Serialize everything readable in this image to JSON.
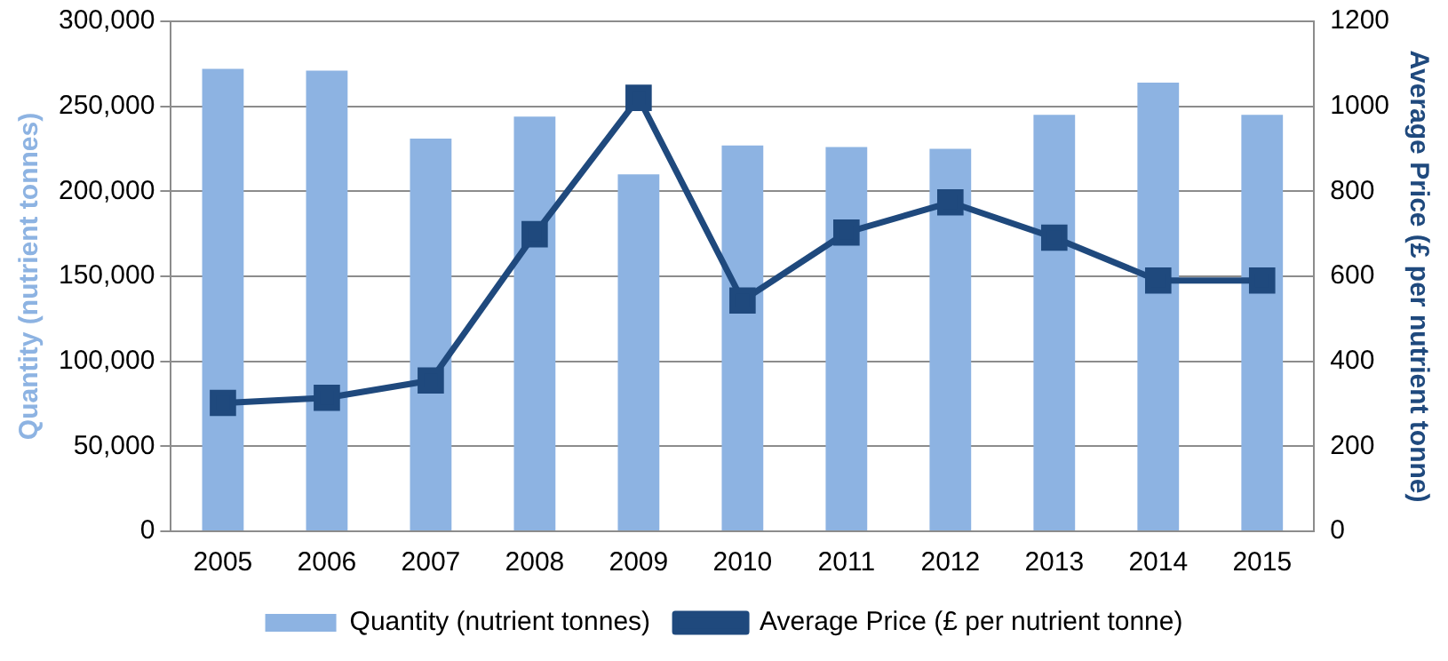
{
  "chart_data": {
    "type": "bar",
    "categories": [
      "2005",
      "2006",
      "2007",
      "2008",
      "2009",
      "2010",
      "2011",
      "2012",
      "2013",
      "2014",
      "2015"
    ],
    "ylabel": "Quantity (nutrient tonnes)",
    "y2label": "Average Price (£ per nutrient tonne)",
    "series": [
      {
        "name": "Quantity (nutrient tonnes)",
        "color": "#8db3e2",
        "values": [
          272000,
          271000,
          231000,
          244000,
          210000,
          227000,
          226000,
          225000,
          245000,
          264000,
          245000
        ]
      },
      {
        "name": "Average Price (£ per nutrient tonne)",
        "type": "line",
        "axis": "y2",
        "color": "#1f497d",
        "marker": "square",
        "values": [
          302,
          314,
          355,
          699,
          1020,
          543,
          703,
          774,
          691,
          590,
          590
        ]
      }
    ],
    "ylim": [
      0,
      300000
    ],
    "yticks": [
      {
        "value": 0,
        "label": "0"
      },
      {
        "value": 50000,
        "label": "50,000"
      },
      {
        "value": 100000,
        "label": "100,000"
      },
      {
        "value": 150000,
        "label": "150,000"
      },
      {
        "value": 200000,
        "label": "200,000"
      },
      {
        "value": 250000,
        "label": "250,000"
      },
      {
        "value": 300000,
        "label": "300,000"
      }
    ],
    "y2lim": [
      0,
      1200
    ],
    "y2ticks": [
      0,
      200,
      400,
      600,
      800,
      1000,
      1200
    ],
    "grid": "y",
    "legend": "bottom"
  }
}
